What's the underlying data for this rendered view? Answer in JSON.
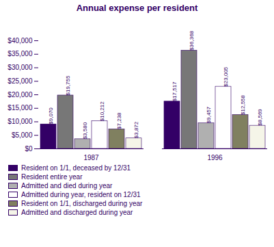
{
  "chart_data": {
    "type": "bar",
    "title": "Annual expense per resident",
    "categories": [
      "1987",
      "1996"
    ],
    "series": [
      {
        "name": "Resident on 1/1, deceased by 12/31",
        "color": "#330066",
        "values": [
          9070,
          17517
        ],
        "value_labels": [
          "$9,070",
          "$17,517"
        ]
      },
      {
        "name": "Resident entire year",
        "color": "#777777",
        "values": [
          19755,
          36368
        ],
        "value_labels": [
          "$19,755",
          "$36,368"
        ]
      },
      {
        "name": "Admitted and died during year",
        "color": "#b0b0b0",
        "values": [
          3580,
          9457
        ],
        "value_labels": [
          "$3,580",
          "$9,457"
        ]
      },
      {
        "name": "Admitted during year, resident on 12/31",
        "color": "#ffffff",
        "values": [
          10212,
          23005
        ],
        "value_labels": [
          "$10,212",
          "$23,005"
        ]
      },
      {
        "name": "Resident on 1/1, discharged during year",
        "color": "#808060",
        "values": [
          7238,
          12558
        ],
        "value_labels": [
          "$7,238",
          "$12,558"
        ]
      },
      {
        "name": "Admitted and discharged during year",
        "color": "#f5f5e8",
        "values": [
          3872,
          8569
        ],
        "value_labels": [
          "$3,872",
          "$8,569"
        ]
      }
    ],
    "ylim": [
      0,
      40000
    ],
    "yticks": [
      {
        "value": 0,
        "label": "$0"
      },
      {
        "value": 5000,
        "label": "$5,000"
      },
      {
        "value": 10000,
        "label": "$10,000"
      },
      {
        "value": 15000,
        "label": "$15,000"
      },
      {
        "value": 20000,
        "label": "$20,000"
      },
      {
        "value": 25000,
        "label": "$25,000"
      },
      {
        "value": 30000,
        "label": "$30,000"
      },
      {
        "value": 35000,
        "label": "$35,000"
      },
      {
        "value": 40000,
        "label": "$40,000"
      }
    ],
    "data_labels": true,
    "grid": false,
    "legend": "bottom"
  }
}
